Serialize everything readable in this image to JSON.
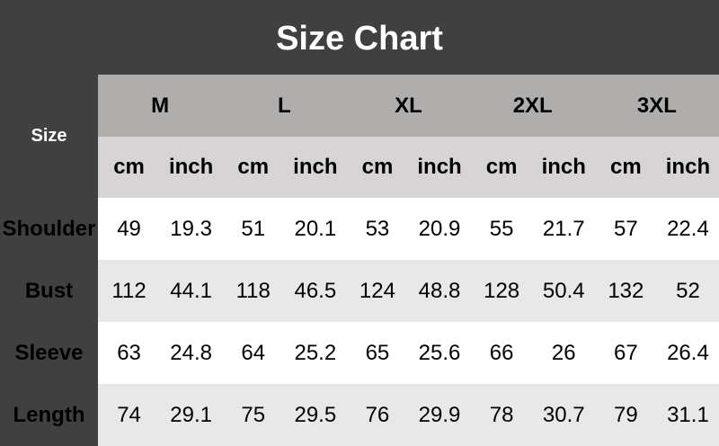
{
  "title": "Size Chart",
  "size_label": "Size",
  "sizes": [
    "M",
    "L",
    "XL",
    "2XL",
    "3XL"
  ],
  "units": [
    "cm",
    "inch"
  ],
  "rows": [
    {
      "label": "Shoulder",
      "values": [
        "49",
        "19.3",
        "51",
        "20.1",
        "53",
        "20.9",
        "55",
        "21.7",
        "57",
        "22.4"
      ]
    },
    {
      "label": "Bust",
      "values": [
        "112",
        "44.1",
        "118",
        "46.5",
        "124",
        "48.8",
        "128",
        "50.4",
        "132",
        "52"
      ]
    },
    {
      "label": "Sleeve",
      "values": [
        "63",
        "24.8",
        "64",
        "25.2",
        "65",
        "25.6",
        "66",
        "26",
        "67",
        "26.4"
      ]
    },
    {
      "label": "Length",
      "values": [
        "74",
        "29.1",
        "75",
        "29.5",
        "76",
        "29.9",
        "78",
        "30.7",
        "79",
        "31.1"
      ]
    }
  ]
}
